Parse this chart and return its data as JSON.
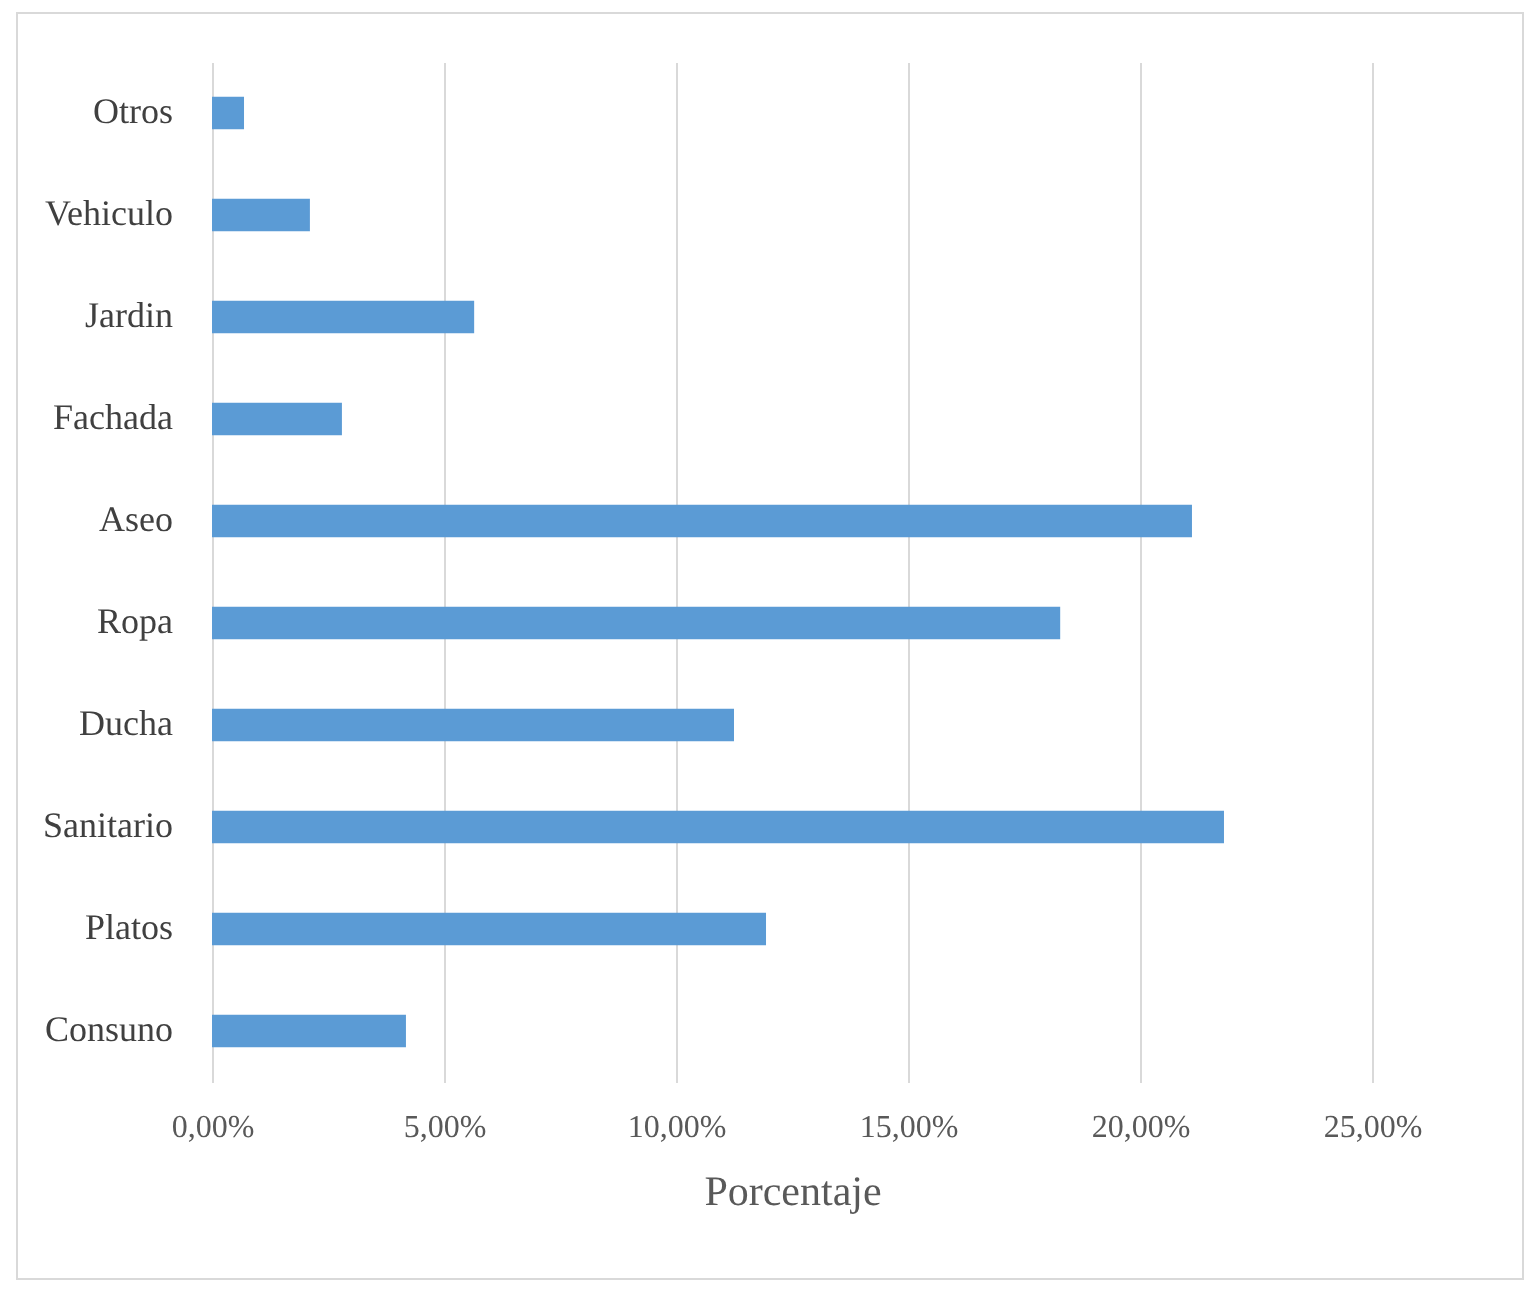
{
  "chart_data": {
    "type": "bar",
    "orientation": "horizontal",
    "xlabel": "Porcentaje",
    "categories": [
      "Otros",
      "Vehiculo",
      "Jardin",
      "Fachada",
      "Aseo",
      "Ropa",
      "Ducha",
      "Sanitario",
      "Platos",
      "Consuno"
    ],
    "values": [
      0.69,
      2.11,
      5.65,
      2.8,
      21.12,
      18.28,
      11.25,
      21.81,
      11.94,
      4.18
    ],
    "color": "#5b9bd5",
    "xlim": [
      0,
      25
    ],
    "xticks": [
      {
        "value": 0,
        "label": "0,00%"
      },
      {
        "value": 5,
        "label": "5,00%"
      },
      {
        "value": 10,
        "label": "10,00%"
      },
      {
        "value": 15,
        "label": "15,00%"
      },
      {
        "value": 20,
        "label": "20,00%"
      },
      {
        "value": 25,
        "label": "25,00%"
      }
    ],
    "grid": "x"
  }
}
